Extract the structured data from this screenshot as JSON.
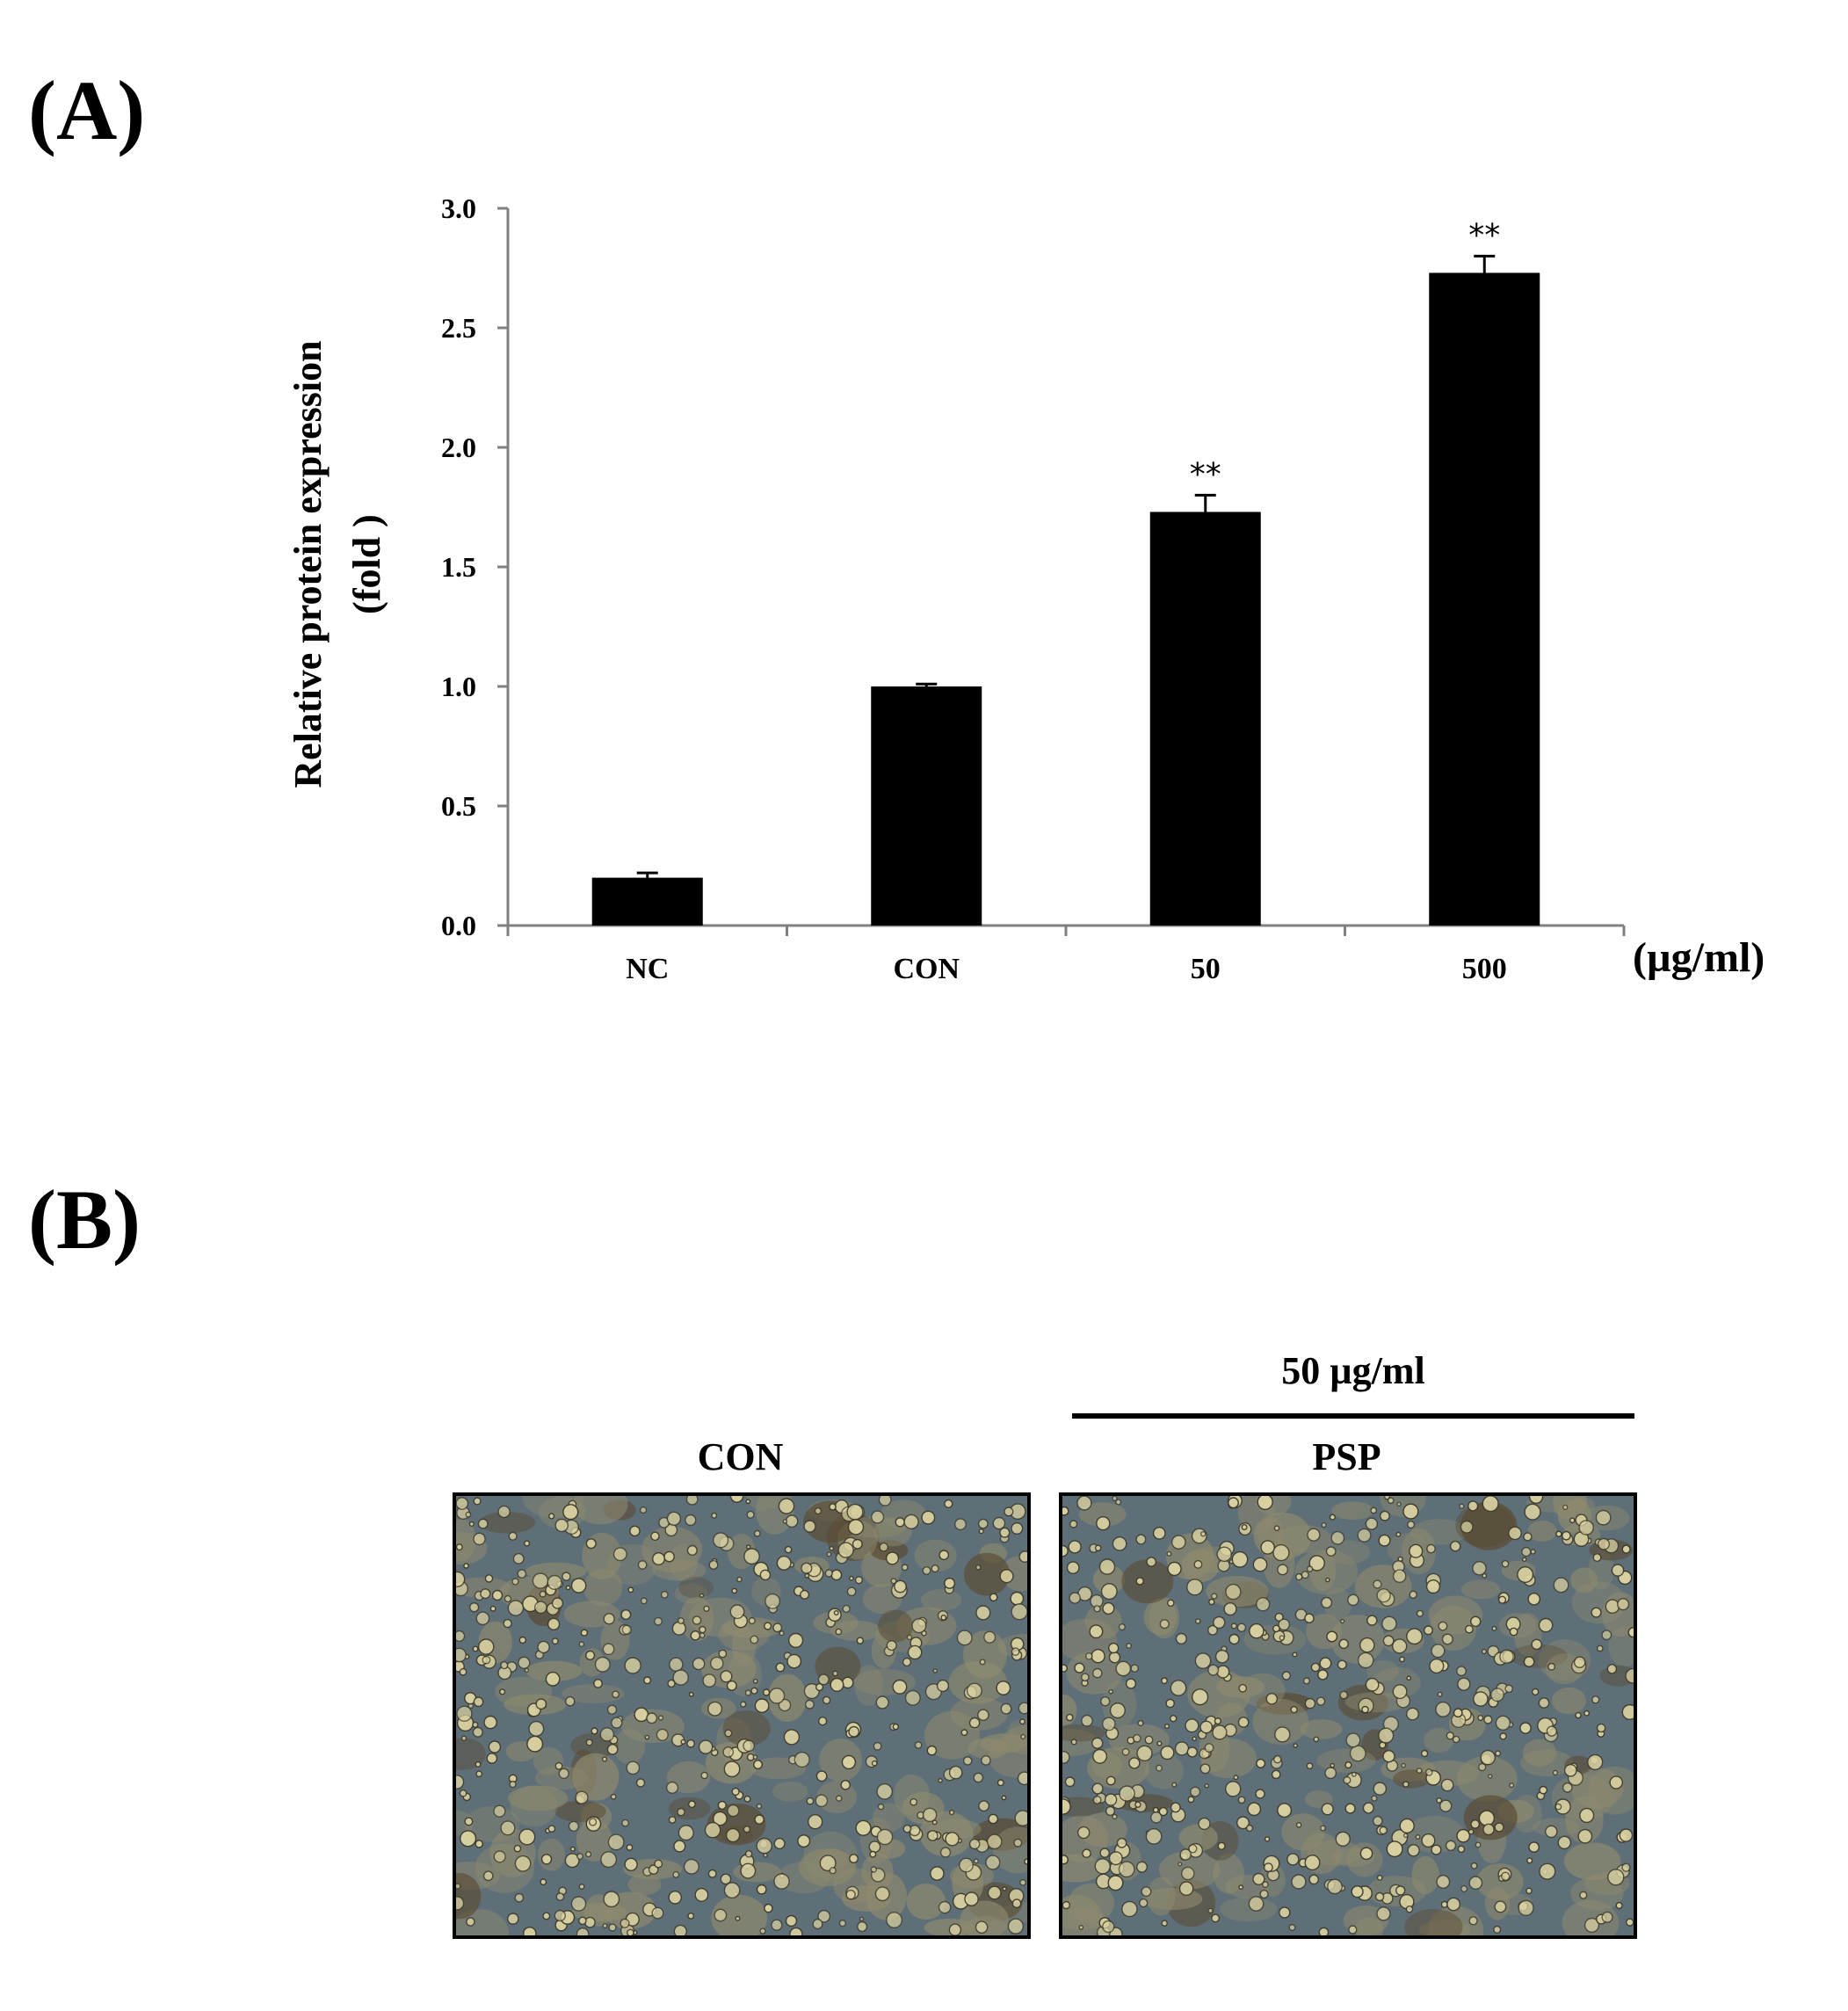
{
  "panels": {
    "a_label": "(A)",
    "b_label": "(B)"
  },
  "chart_data": {
    "type": "bar",
    "title": "",
    "xlabel": "(µg/ml)",
    "ylabel": "Relative protein expression",
    "ylabel_line2": "(fold )",
    "categories": [
      "NC",
      "CON",
      "50",
      "500"
    ],
    "series": [
      {
        "name": "Relative protein expression",
        "values": [
          0.2,
          1.0,
          1.73,
          2.73
        ],
        "errors": [
          0.02,
          0.01,
          0.07,
          0.07
        ],
        "significance": [
          "",
          "",
          "**",
          "**"
        ],
        "color": "#000000"
      }
    ],
    "ylim": [
      0,
      3.0
    ],
    "yticks": [
      0.0,
      0.5,
      1.0,
      1.5,
      2.0,
      2.5,
      3.0
    ],
    "ytick_labels": [
      "0.0",
      "0.5",
      "1.0",
      "1.5",
      "2.0",
      "2.5",
      "3.0"
    ],
    "grid": false,
    "legend": "none"
  },
  "micrographs": {
    "dose_label": "50 µg/ml",
    "images": [
      {
        "title": "CON",
        "description": "phase-contrast micrograph"
      },
      {
        "title": "PSP",
        "description": "phase-contrast micrograph"
      }
    ],
    "colors": {
      "background": "#5e6f78",
      "droplet": "#d8d0a0",
      "droplet_edge": "#3d3a2c",
      "dark_cell": "#5a4a30"
    }
  }
}
